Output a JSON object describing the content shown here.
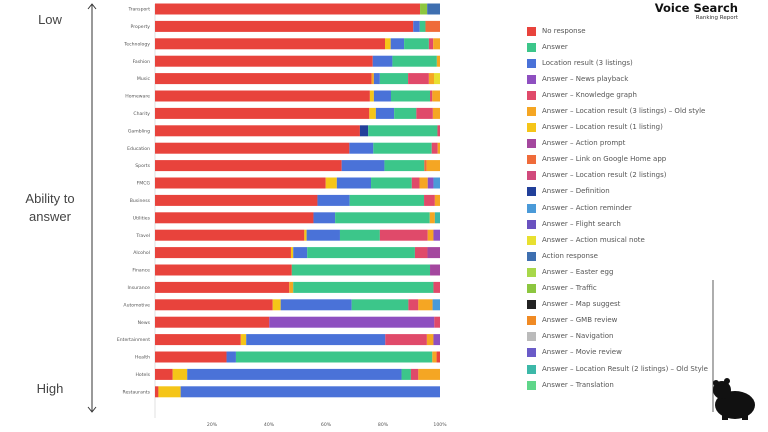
{
  "brand": {
    "title": "Voice Search",
    "subtitle": "Ranking Report"
  },
  "side_labels": {
    "top": "Low",
    "middle": "Ability to answer",
    "bottom": "High"
  },
  "chart_data": {
    "type": "bar",
    "orientation": "horizontal",
    "stacked": true,
    "xlim": [
      0,
      100
    ],
    "x_ticks": [
      "",
      "20%",
      "40%",
      "60%",
      "80%",
      "100%"
    ],
    "legend_placement": "right",
    "legend": [
      {
        "name": "No response",
        "color": "#e8433c"
      },
      {
        "name": "Answer",
        "color": "#3cc68a"
      },
      {
        "name": "Location result (3 listings)",
        "color": "#4a72d8"
      },
      {
        "name": "Answer – News playback",
        "color": "#8e4fc0"
      },
      {
        "name": "Answer – Knowledge graph",
        "color": "#e04a6a"
      },
      {
        "name": "Answer – Location result (3 listings) – Old style",
        "color": "#f5a623"
      },
      {
        "name": "Answer – Location result (1 listing)",
        "color": "#f5c518"
      },
      {
        "name": "Answer – Action prompt",
        "color": "#a4479e"
      },
      {
        "name": "Answer – Link on Google Home app",
        "color": "#ef6b3a"
      },
      {
        "name": "Answer – Location result (2 listings)",
        "color": "#d14a7c"
      },
      {
        "name": "Answer – Definition",
        "color": "#22409a"
      },
      {
        "name": "Answer – Action reminder",
        "color": "#4a9ad8"
      },
      {
        "name": "Answer – Flight search",
        "color": "#6a52c0"
      },
      {
        "name": "Answer – Action musical note",
        "color": "#e8e030"
      },
      {
        "name": "Action response",
        "color": "#3e6fb0"
      },
      {
        "name": "Answer – Easter egg",
        "color": "#a8d84a"
      },
      {
        "name": "Answer – Traffic",
        "color": "#8cc63f"
      },
      {
        "name": "Answer – Map suggest",
        "color": "#222222"
      },
      {
        "name": "Answer – GMB review",
        "color": "#f08a24"
      },
      {
        "name": "Answer – Navigation",
        "color": "#bbbbbb"
      },
      {
        "name": "Answer – Movie review",
        "color": "#6a5bc8"
      },
      {
        "name": "Answer – Location Result (2 listings) – Old Style",
        "color": "#3cb8a8"
      },
      {
        "name": "Answer – Translation",
        "color": "#5fd68a"
      }
    ],
    "rows": [
      {
        "label": "Transport",
        "segments": [
          [
            0,
            93
          ],
          [
            16,
            2.5
          ],
          [
            14,
            4.5
          ]
        ]
      },
      {
        "label": "Property",
        "segments": [
          [
            0,
            90.6
          ],
          [
            2,
            2.3
          ],
          [
            1,
            2
          ],
          [
            8,
            5.1
          ]
        ]
      },
      {
        "label": "Technology",
        "segments": [
          [
            0,
            80.7
          ],
          [
            6,
            2
          ],
          [
            2,
            4.7
          ],
          [
            1,
            8.7
          ],
          [
            4,
            1.5
          ],
          [
            5,
            2.4
          ]
        ]
      },
      {
        "label": "Fashion",
        "segments": [
          [
            0,
            76.4
          ],
          [
            2,
            6.9
          ],
          [
            1,
            15.6
          ],
          [
            5,
            1.1
          ]
        ]
      },
      {
        "label": "Music",
        "segments": [
          [
            0,
            76
          ],
          [
            5,
            0.8
          ],
          [
            2,
            2.1
          ],
          [
            1,
            9.9
          ],
          [
            4,
            7.3
          ],
          [
            5,
            1.8
          ],
          [
            13,
            2.1
          ]
        ]
      },
      {
        "label": "Homeware",
        "segments": [
          [
            0,
            75.4
          ],
          [
            6,
            1.4
          ],
          [
            2,
            6
          ],
          [
            1,
            13.7
          ],
          [
            4,
            0.8
          ],
          [
            5,
            2.7
          ]
        ]
      },
      {
        "label": "Charity",
        "segments": [
          [
            0,
            75.2
          ],
          [
            6,
            2.3
          ],
          [
            2,
            6.4
          ],
          [
            1,
            7.8
          ],
          [
            4,
            5.8
          ],
          [
            5,
            2.5
          ]
        ]
      },
      {
        "label": "Gambling",
        "segments": [
          [
            0,
            71.9
          ],
          [
            10,
            2.9
          ],
          [
            1,
            24.3
          ],
          [
            4,
            0.9
          ]
        ]
      },
      {
        "label": "Education",
        "segments": [
          [
            0,
            68.2
          ],
          [
            2,
            8.4
          ],
          [
            1,
            20.5
          ],
          [
            4,
            2.1
          ],
          [
            5,
            0.8
          ]
        ]
      },
      {
        "label": "Sports",
        "segments": [
          [
            0,
            65.5
          ],
          [
            2,
            15
          ],
          [
            1,
            14
          ],
          [
            8,
            0.8
          ],
          [
            5,
            4.7
          ]
        ]
      },
      {
        "label": "FMCG",
        "segments": [
          [
            0,
            59.9
          ],
          [
            6,
            3.9
          ],
          [
            2,
            12
          ],
          [
            1,
            14.3
          ],
          [
            4,
            2.7
          ],
          [
            5,
            2.9
          ],
          [
            3,
            2
          ],
          [
            11,
            2.3
          ]
        ]
      },
      {
        "label": "Business",
        "segments": [
          [
            0,
            57
          ],
          [
            2,
            11.3
          ],
          [
            1,
            26.1
          ],
          [
            4,
            3.8
          ],
          [
            5,
            1.8
          ]
        ]
      },
      {
        "label": "Utilities",
        "segments": [
          [
            0,
            55.6
          ],
          [
            2,
            7.6
          ],
          [
            1,
            33.2
          ],
          [
            5,
            1.8
          ],
          [
            21,
            1.8
          ]
        ]
      },
      {
        "label": "Travel",
        "segments": [
          [
            0,
            52.4
          ],
          [
            6,
            0.8
          ],
          [
            2,
            11.7
          ],
          [
            1,
            14
          ],
          [
            4,
            16.8
          ],
          [
            5,
            2
          ],
          [
            3,
            2.3
          ]
        ]
      },
      {
        "label": "Alcohol",
        "segments": [
          [
            0,
            47.7
          ],
          [
            6,
            0.8
          ],
          [
            2,
            4.9
          ],
          [
            1,
            37.8
          ],
          [
            4,
            4.4
          ],
          [
            7,
            4.4
          ]
        ]
      },
      {
        "label": "Finance",
        "segments": [
          [
            0,
            48
          ],
          [
            1,
            48.5
          ],
          [
            7,
            3.5
          ]
        ]
      },
      {
        "label": "Insurance",
        "segments": [
          [
            0,
            47.1
          ],
          [
            5,
            1.4
          ],
          [
            1,
            49.2
          ],
          [
            4,
            2.3
          ]
        ]
      },
      {
        "label": "Automotive",
        "segments": [
          [
            0,
            41.3
          ],
          [
            6,
            2.8
          ],
          [
            2,
            24.9
          ],
          [
            1,
            19.9
          ],
          [
            4,
            3.5
          ],
          [
            5,
            5
          ],
          [
            11,
            2.6
          ]
        ]
      },
      {
        "label": "News",
        "segments": [
          [
            0,
            40.1
          ],
          [
            3,
            57.9
          ],
          [
            4,
            2
          ]
        ]
      },
      {
        "label": "Entertainment",
        "segments": [
          [
            0,
            30.1
          ],
          [
            6,
            1.9
          ],
          [
            2,
            48.8
          ],
          [
            4,
            14.6
          ],
          [
            5,
            2.3
          ],
          [
            3,
            2.3
          ]
        ]
      },
      {
        "label": "Health",
        "segments": [
          [
            0,
            25.1
          ],
          [
            2,
            3.3
          ],
          [
            1,
            68.9
          ],
          [
            5,
            1.5
          ],
          [
            0,
            1.2
          ]
        ]
      },
      {
        "label": "Hotels",
        "segments": [
          [
            0,
            6.2
          ],
          [
            6,
            5.1
          ],
          [
            2,
            75.2
          ],
          [
            1,
            3.3
          ],
          [
            4,
            2.6
          ],
          [
            5,
            7.6
          ]
        ]
      },
      {
        "label": "Restaurants",
        "segments": [
          [
            0,
            1.2
          ],
          [
            6,
            7.8
          ],
          [
            2,
            91
          ]
        ]
      }
    ]
  }
}
